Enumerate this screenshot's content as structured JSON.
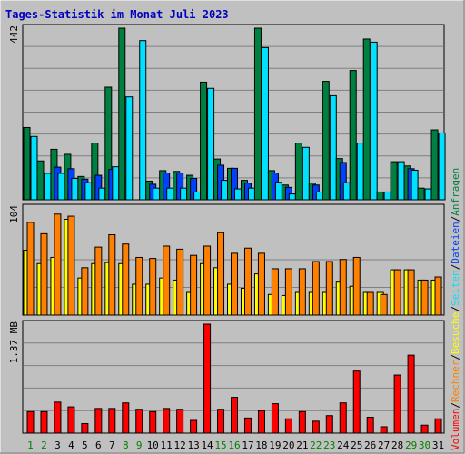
{
  "title": "Tages-Statistik im Monat Juli 2023",
  "colors": {
    "background": "#c0c0c0",
    "plot": "#c0c0c0",
    "grid": "#808080",
    "title": "#0000c0",
    "weekday": "#000000",
    "weekend": "#008000",
    "anfragen": "#008040",
    "dateien": "#0040ff",
    "seiten": "#00e0ff",
    "besuche": "#ffff00",
    "rechner": "#ff8000",
    "volumen": "#ff0000",
    "separator": "#000000"
  },
  "legend": {
    "upper": [
      {
        "label": "Anfragen",
        "color": "#008040"
      },
      {
        "label": "Dateien",
        "color": "#0040ff"
      },
      {
        "label": "Seiten",
        "color": "#00e0ff"
      }
    ],
    "lower": [
      {
        "label": "Besuche",
        "color": "#ffff00"
      },
      {
        "label": "Rechner",
        "color": "#ff8000"
      },
      {
        "label": "Volumen",
        "color": "#ff0000"
      }
    ],
    "separator": "/"
  },
  "chart_data": [
    {
      "type": "bar",
      "panel": "requests",
      "ymax_label": "442",
      "ylim": [
        0,
        442
      ],
      "grid": true,
      "categories": [
        "1",
        "2",
        "3",
        "4",
        "5",
        "6",
        "7",
        "8",
        "9",
        "10",
        "11",
        "12",
        "13",
        "14",
        "15",
        "16",
        "17",
        "18",
        "19",
        "20",
        "21",
        "22",
        "23",
        "24",
        "25",
        "26",
        "27",
        "28",
        "29",
        "30",
        "31"
      ],
      "weekend": [
        1,
        2,
        8,
        9,
        15,
        16,
        22,
        23,
        29,
        30
      ],
      "series": [
        {
          "name": "Anfragen",
          "values": [
            186,
            100,
            130,
            117,
            60,
            146,
            290,
            442,
            0,
            48,
            75,
            73,
            63,
            303,
            105,
            81,
            50,
            442,
            75,
            38,
            146,
            43,
            305,
            106,
            333,
            414,
            20,
            98,
            87,
            30,
            180
          ]
        },
        {
          "name": "Dateien",
          "values": [
            0,
            0,
            84,
            80,
            53,
            63,
            78,
            0,
            0,
            40,
            69,
            69,
            55,
            0,
            89,
            81,
            43,
            0,
            69,
            32,
            0,
            38,
            0,
            96,
            0,
            0,
            0,
            0,
            80,
            0,
            0
          ]
        },
        {
          "name": "Seiten",
          "values": [
            163,
            68,
            68,
            55,
            44,
            30,
            85,
            265,
            410,
            30,
            30,
            30,
            20,
            287,
            50,
            28,
            30,
            392,
            45,
            15,
            135,
            20,
            268,
            44,
            146,
            406,
            20,
            98,
            76,
            28,
            172
          ]
        }
      ]
    },
    {
      "type": "bar",
      "panel": "visits",
      "ymax_label": "104",
      "ylim": [
        0,
        104
      ],
      "grid": true,
      "categories": [
        "1",
        "2",
        "3",
        "4",
        "5",
        "6",
        "7",
        "8",
        "9",
        "10",
        "11",
        "12",
        "13",
        "14",
        "15",
        "16",
        "17",
        "18",
        "19",
        "20",
        "21",
        "22",
        "23",
        "24",
        "25",
        "26",
        "27",
        "28",
        "29",
        "30",
        "31"
      ],
      "series": [
        {
          "name": "Besuche",
          "values": [
            63,
            50,
            56,
            93,
            36,
            50,
            51,
            50,
            30,
            30,
            36,
            34,
            22,
            50,
            46,
            30,
            26,
            40,
            20,
            19,
            22,
            22,
            22,
            32,
            28,
            22,
            22,
            44,
            44,
            34,
            34
          ]
        },
        {
          "name": "Rechner",
          "values": [
            90,
            79,
            98,
            96,
            46,
            66,
            78,
            69,
            56,
            55,
            67,
            64,
            58,
            67,
            80,
            60,
            65,
            60,
            45,
            45,
            45,
            52,
            52,
            54,
            56,
            22,
            20,
            44,
            44,
            34,
            37
          ]
        }
      ]
    },
    {
      "type": "bar",
      "panel": "volume",
      "ymax_label": "1.37 MB",
      "ylim": [
        0,
        1.37
      ],
      "grid": true,
      "categories": [
        "1",
        "2",
        "3",
        "4",
        "5",
        "6",
        "7",
        "8",
        "9",
        "10",
        "11",
        "12",
        "13",
        "14",
        "15",
        "16",
        "17",
        "18",
        "19",
        "20",
        "21",
        "22",
        "23",
        "24",
        "25",
        "26",
        "27",
        "28",
        "29",
        "30",
        "31"
      ],
      "series": [
        {
          "name": "Volumen",
          "values": [
            0.27,
            0.27,
            0.39,
            0.33,
            0.12,
            0.31,
            0.31,
            0.38,
            0.3,
            0.27,
            0.31,
            0.3,
            0.16,
            1.37,
            0.3,
            0.45,
            0.19,
            0.28,
            0.37,
            0.18,
            0.27,
            0.15,
            0.22,
            0.38,
            0.78,
            0.2,
            0.08,
            0.73,
            0.98,
            0.1,
            0.18
          ]
        }
      ]
    }
  ]
}
